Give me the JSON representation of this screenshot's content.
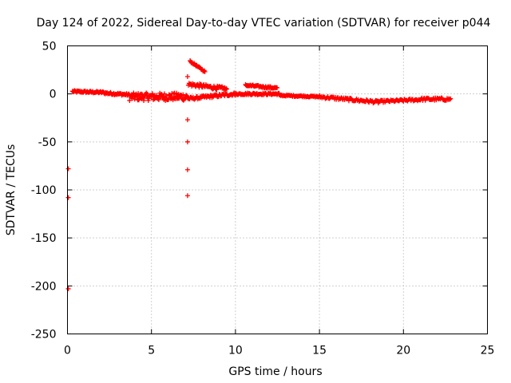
{
  "chart_data": {
    "type": "scatter",
    "title": "Day 124 of 2022, Sidereal Day-to-day VTEC variation (SDTVAR) for receiver p044",
    "xlabel": "GPS time / hours",
    "ylabel": "SDTVAR / TECUs",
    "xlim": [
      0,
      25
    ],
    "ylim": [
      -250,
      50
    ],
    "xticks": [
      0,
      5,
      10,
      15,
      20,
      25
    ],
    "yticks": [
      50,
      0,
      -50,
      -100,
      -150,
      -200,
      -250
    ],
    "grid": true,
    "colors": {
      "points": "#ff0000",
      "grid": "#a0a0a0",
      "frame": "#000000"
    },
    "series": [
      {
        "name": "SDTVAR",
        "marker": "plus",
        "segments": [
          {
            "x0": 0.3,
            "x1": 2.2,
            "y0": 2.5,
            "y1": 1.5,
            "step": 0.04,
            "jitter": 1.0
          },
          {
            "x0": 2.2,
            "x1": 3.7,
            "y0": 1.0,
            "y1": -1.0,
            "step": 0.04,
            "jitter": 1.2
          },
          {
            "x0": 3.7,
            "x1": 7.2,
            "y0": -3.0,
            "y1": -3.0,
            "step": 0.03,
            "jitter": 4.0
          },
          {
            "x0": 7.2,
            "x1": 10.0,
            "y0": -5.0,
            "y1": 0.0,
            "step": 0.04,
            "jitter": 1.5
          },
          {
            "x0": 7.2,
            "x1": 9.5,
            "y0": 10.0,
            "y1": 5.0,
            "step": 0.04,
            "jitter": 2.0
          },
          {
            "x0": 7.3,
            "x1": 8.2,
            "y0": 34.0,
            "y1": 23.0,
            "step": 0.04,
            "jitter": 0.8
          },
          {
            "x0": 10.0,
            "x1": 12.6,
            "y0": 0.0,
            "y1": 0.0,
            "step": 0.04,
            "jitter": 1.0
          },
          {
            "x0": 10.6,
            "x1": 12.5,
            "y0": 9.0,
            "y1": 6.0,
            "step": 0.04,
            "jitter": 1.0
          },
          {
            "x0": 12.6,
            "x1": 15.0,
            "y0": -1.5,
            "y1": -3.0,
            "step": 0.05,
            "jitter": 0.7
          },
          {
            "x0": 15.0,
            "x1": 18.5,
            "y0": -3.0,
            "y1": -8.5,
            "step": 0.05,
            "jitter": 1.5
          },
          {
            "x0": 18.5,
            "x1": 21.0,
            "y0": -8.0,
            "y1": -6.0,
            "step": 0.05,
            "jitter": 1.2
          },
          {
            "x0": 21.0,
            "x1": 22.8,
            "y0": -5.5,
            "y1": -5.5,
            "step": 0.05,
            "jitter": 1.5
          }
        ],
        "outliers": [
          {
            "x": 0.05,
            "y": -78
          },
          {
            "x": 0.05,
            "y": -108
          },
          {
            "x": 0.05,
            "y": -203
          },
          {
            "x": 7.15,
            "y": 18
          },
          {
            "x": 7.15,
            "y": -27
          },
          {
            "x": 7.15,
            "y": -50
          },
          {
            "x": 7.15,
            "y": -79
          },
          {
            "x": 7.15,
            "y": -106
          }
        ]
      }
    ]
  }
}
